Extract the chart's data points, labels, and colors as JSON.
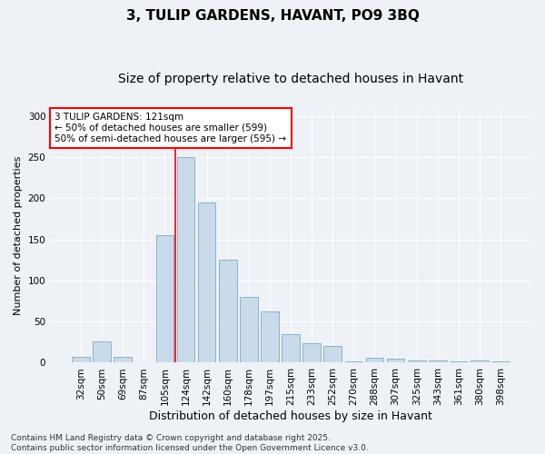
{
  "title": "3, TULIP GARDENS, HAVANT, PO9 3BQ",
  "subtitle": "Size of property relative to detached houses in Havant",
  "xlabel": "Distribution of detached houses by size in Havant",
  "ylabel": "Number of detached properties",
  "categories": [
    "32sqm",
    "50sqm",
    "69sqm",
    "87sqm",
    "105sqm",
    "124sqm",
    "142sqm",
    "160sqm",
    "178sqm",
    "197sqm",
    "215sqm",
    "233sqm",
    "252sqm",
    "270sqm",
    "288sqm",
    "307sqm",
    "325sqm",
    "343sqm",
    "361sqm",
    "380sqm",
    "398sqm"
  ],
  "values": [
    7,
    26,
    7,
    1,
    155,
    250,
    195,
    125,
    80,
    62,
    35,
    24,
    20,
    2,
    6,
    5,
    3,
    3,
    2,
    3,
    2
  ],
  "bar_color": "#c9daea",
  "bar_edge_color": "#7aaac8",
  "vline_x_index": 5,
  "vline_color": "red",
  "annotation_text": "3 TULIP GARDENS: 121sqm\n← 50% of detached houses are smaller (599)\n50% of semi-detached houses are larger (595) →",
  "annotation_box_color": "white",
  "annotation_box_edge_color": "red",
  "ylim": [
    0,
    310
  ],
  "yticks": [
    0,
    50,
    100,
    150,
    200,
    250,
    300
  ],
  "background_color": "#eef2f7",
  "footer_text": "Contains HM Land Registry data © Crown copyright and database right 2025.\nContains public sector information licensed under the Open Government Licence v3.0.",
  "title_fontsize": 11,
  "subtitle_fontsize": 10,
  "xlabel_fontsize": 9,
  "ylabel_fontsize": 8,
  "tick_fontsize": 7.5,
  "annotation_fontsize": 7.5,
  "footer_fontsize": 6.5
}
